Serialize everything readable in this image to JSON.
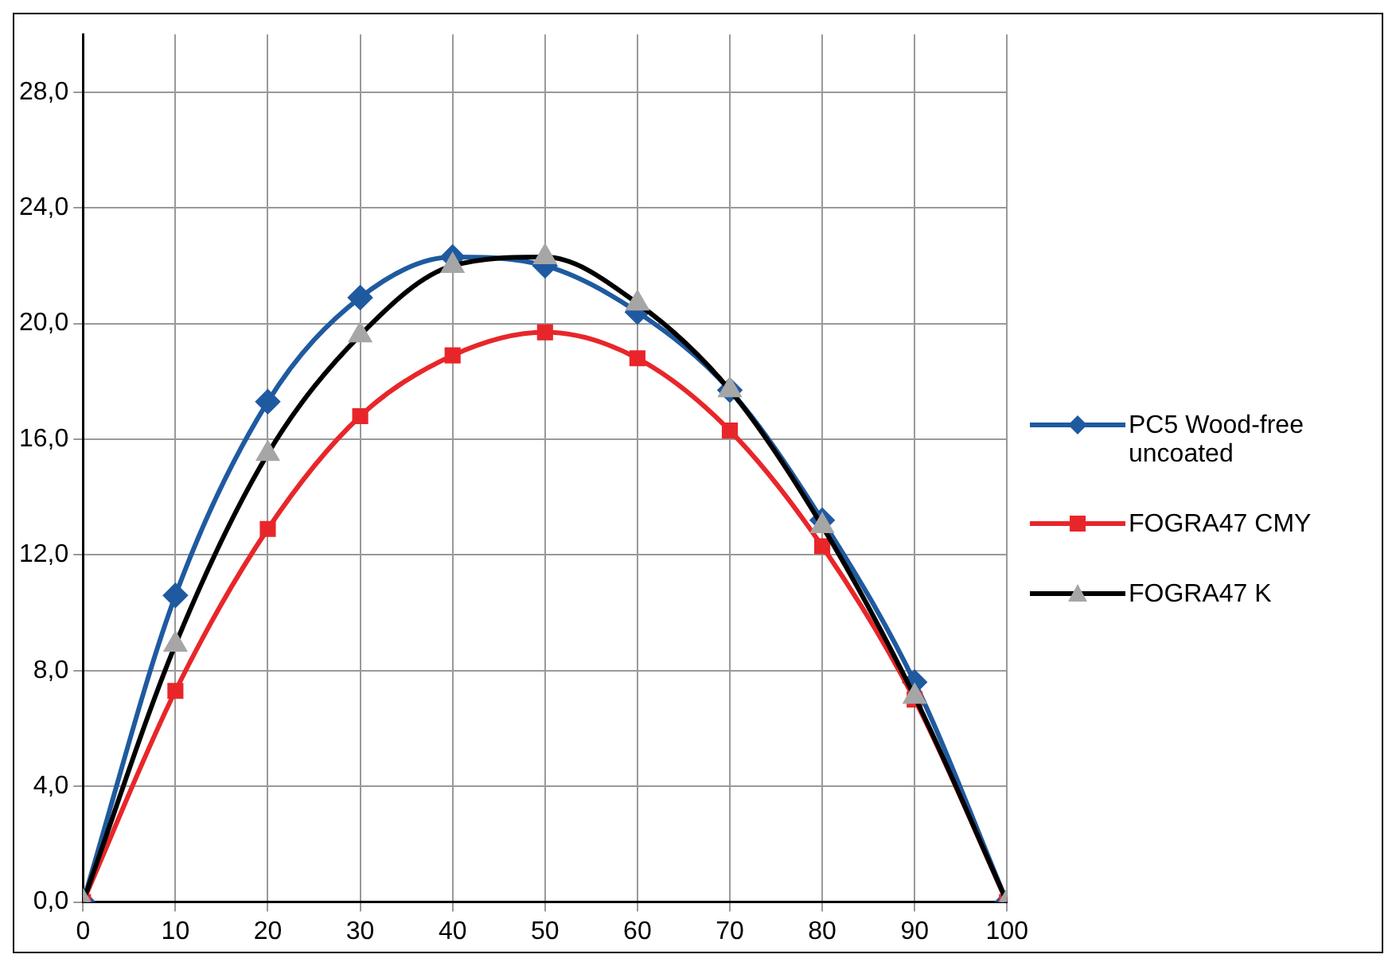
{
  "chart_data": {
    "type": "line",
    "x": [
      0,
      10,
      20,
      30,
      40,
      50,
      60,
      70,
      80,
      90,
      100
    ],
    "series": [
      {
        "name": "PC5 Wood-free uncoated",
        "color": "#1f5aa0",
        "marker": "diamond",
        "values": [
          0,
          10.6,
          17.3,
          20.9,
          22.3,
          22.0,
          20.4,
          17.7,
          13.2,
          7.6,
          0
        ]
      },
      {
        "name": "FOGRA47 CMY",
        "color": "#e8262a",
        "marker": "square",
        "values": [
          0,
          7.3,
          12.9,
          16.8,
          18.9,
          19.7,
          18.8,
          16.3,
          12.3,
          7.0,
          0
        ]
      },
      {
        "name": "FOGRA47 K",
        "color": "#000000",
        "marker": "triangle",
        "values": [
          0,
          8.9,
          15.5,
          19.6,
          22.0,
          22.3,
          20.7,
          17.7,
          13.0,
          7.1,
          0
        ]
      }
    ],
    "xlim": [
      0,
      100
    ],
    "xticks": [
      0,
      10,
      20,
      30,
      40,
      50,
      60,
      70,
      80,
      90,
      100
    ],
    "ylim": [
      0,
      30
    ],
    "yticks": [
      {
        "value": 0,
        "label": "0,0"
      },
      {
        "value": 4,
        "label": "4,0"
      },
      {
        "value": 8,
        "label": "8,0"
      },
      {
        "value": 12,
        "label": "12,0"
      },
      {
        "value": 16,
        "label": "16,0"
      },
      {
        "value": 20,
        "label": "20,0"
      },
      {
        "value": 24,
        "label": "24,0"
      },
      {
        "value": 28,
        "label": "28,0"
      }
    ],
    "grid": true,
    "legend": "right"
  }
}
